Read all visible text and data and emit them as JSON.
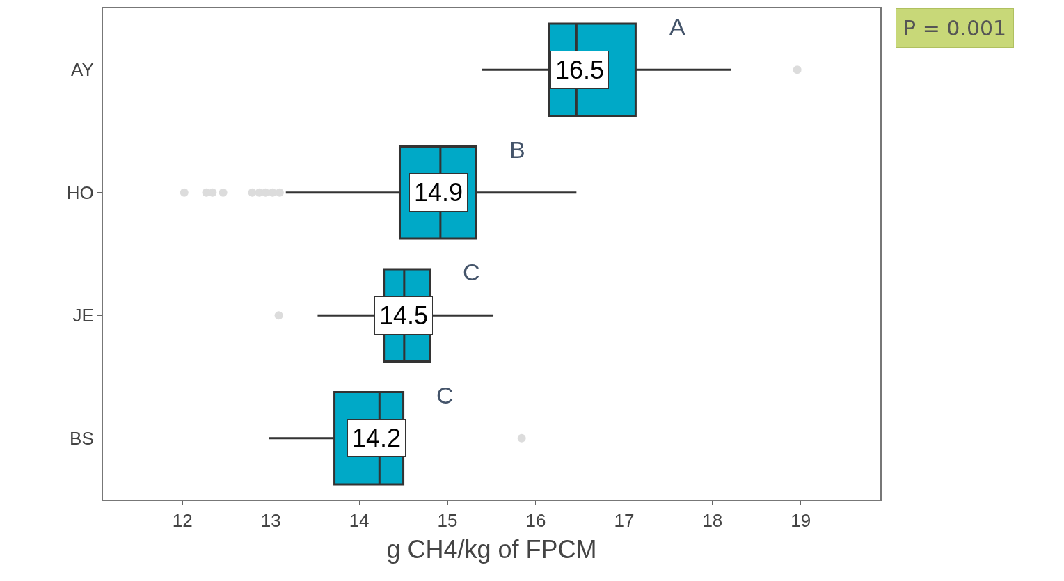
{
  "chart_data": {
    "type": "box",
    "orientation": "horizontal",
    "categories": [
      "AY",
      "HO",
      "JE",
      "BS"
    ],
    "boxes": [
      {
        "low": 15.39,
        "q1": 16.15,
        "median": 16.46,
        "q3": 17.13,
        "high": 18.21,
        "outliers": [
          18.96
        ]
      },
      {
        "low": 13.17,
        "q1": 14.46,
        "median": 14.92,
        "q3": 15.32,
        "high": 16.46,
        "outliers": [
          12.02,
          12.27,
          12.34,
          12.46,
          12.79,
          12.87,
          12.94,
          13.02,
          13.1
        ]
      },
      {
        "low": 13.53,
        "q1": 14.28,
        "median": 14.51,
        "q3": 14.8,
        "high": 15.52,
        "outliers": [
          13.09
        ]
      },
      {
        "low": 12.98,
        "q1": 13.72,
        "median": 14.23,
        "q3": 14.5,
        "high": 14.5,
        "outliers": [
          15.84
        ]
      }
    ],
    "color": "#00a9c7",
    "xlabel": "g CH4/kg of FPCM",
    "xlim": [
      11.1,
      19.9
    ],
    "xticks": [
      12,
      13,
      14,
      15,
      16,
      17,
      18,
      19
    ],
    "annotations": [
      {
        "text": "16.5",
        "x": 16.5,
        "y": "AY"
      },
      {
        "text": "14.9",
        "x": 14.9,
        "y": "HO"
      },
      {
        "text": "14.5",
        "x": 14.5,
        "y": "JE"
      },
      {
        "text": "14.2",
        "x": 14.2,
        "y": "BS"
      },
      "A",
      "B",
      "C",
      "C",
      "P = 0.001"
    ]
  }
}
